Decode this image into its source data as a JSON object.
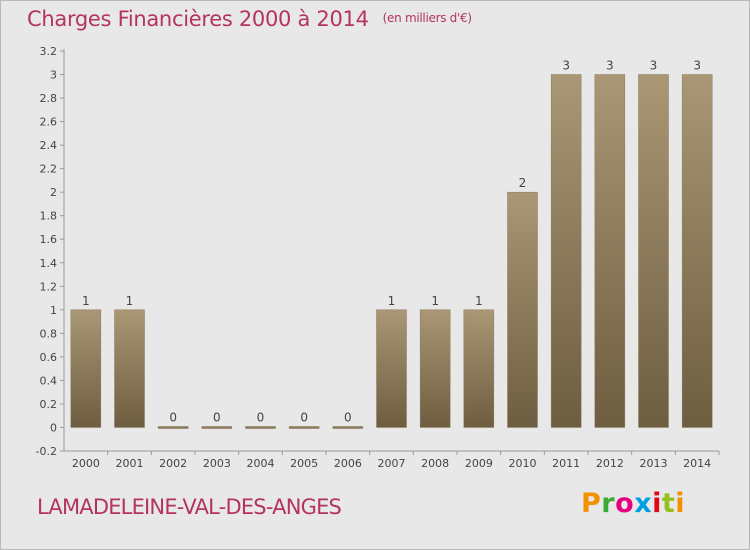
{
  "title": "Charges Financières 2000 à 2014",
  "subtitle": "(en milliers d'€)",
  "commune": "LAMADELEINE-VAL-DES-ANGES",
  "logo_text": "Proxiti",
  "colors": {
    "accent": "#b4345d",
    "bar_light": "#a99775",
    "bar_dark": "#6e5d40",
    "background": "#e8e8e8"
  },
  "chart_data": {
    "type": "bar",
    "categories": [
      "2000",
      "2001",
      "2002",
      "2003",
      "2004",
      "2005",
      "2006",
      "2007",
      "2008",
      "2009",
      "2010",
      "2011",
      "2012",
      "2013",
      "2014"
    ],
    "values": [
      1,
      1,
      0,
      0,
      0,
      0,
      0,
      1,
      1,
      1,
      2,
      3,
      3,
      3,
      3
    ],
    "data_labels": [
      "1",
      "1",
      "0",
      "0",
      "0",
      "0",
      "0",
      "1",
      "1",
      "1",
      "2",
      "3",
      "3",
      "3",
      "3"
    ],
    "yticks": [
      "-0.2",
      "0",
      "0.2",
      "0.4",
      "0.6",
      "0.8",
      "1",
      "1.2",
      "1.4",
      "1.6",
      "1.8",
      "2",
      "2.2",
      "2.4",
      "2.6",
      "2.8",
      "3",
      "3.2"
    ],
    "ylim": [
      -0.2,
      3.2
    ],
    "grid": false,
    "legend": "none"
  }
}
